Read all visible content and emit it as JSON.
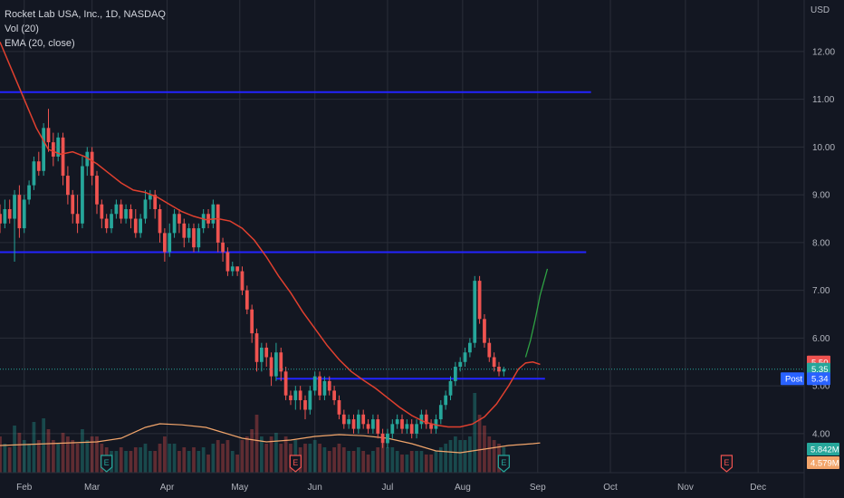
{
  "legend": {
    "symbol": "Rocket Lab USA, Inc., 1D, NASDAQ",
    "vol": "Vol (20)",
    "ema": "EMA (20, close)"
  },
  "colors": {
    "background": "#131722",
    "grid": "#2a2e39",
    "up": "#26a69a",
    "down": "#ef5350",
    "ema": "#e0402f",
    "hline": "#2323ff",
    "axis_text": "#b2b5be",
    "vol_ma": "#f2a56b",
    "forecast": "#2ea043"
  },
  "chart_data": {
    "type": "candlestick",
    "currency": "USD",
    "y_ticks": [
      "12.00",
      "11.00",
      "10.00",
      "9.00",
      "8.00",
      "7.00",
      "6.00",
      "5.00",
      "4.00"
    ],
    "y_values": [
      12,
      11,
      10,
      9,
      8,
      7,
      6,
      5,
      4
    ],
    "ylim": [
      3.6,
      12.7
    ],
    "x_ticks": [
      "Feb",
      "Mar",
      "Apr",
      "May",
      "Jun",
      "Jul",
      "Aug",
      "Sep",
      "Oct",
      "Nov",
      "Dec"
    ],
    "x_tick_days": [
      0,
      28,
      59,
      89,
      120,
      150,
      181,
      212,
      242,
      273,
      303
    ],
    "xlim_days": [
      -10,
      322
    ],
    "horizontal_lines": [
      {
        "price": 11.15,
        "from_day": -10,
        "to_day": 234
      },
      {
        "price": 7.8,
        "from_day": -10,
        "to_day": 232
      },
      {
        "price": 5.15,
        "from_day": 104,
        "to_day": 215
      }
    ],
    "price_labels": [
      {
        "label": "",
        "value": "5.50",
        "price": 5.5,
        "color": "#ef5350"
      },
      {
        "label": "",
        "value": "5.35",
        "price": 5.35,
        "color": "#26a69a"
      },
      {
        "label": "Post",
        "value": "5.34",
        "price": 5.15,
        "color": "#2962ff"
      }
    ],
    "volume_labels": [
      {
        "value": "5.842M",
        "color": "#26a69a"
      },
      {
        "value": "4.579M",
        "color": "#f2a56b"
      }
    ],
    "earnings": [
      {
        "day": 34,
        "label": "E",
        "color": "#26a69a"
      },
      {
        "day": 112,
        "label": "E",
        "color": "#ef5350"
      },
      {
        "day": 198,
        "label": "E",
        "color": "#26a69a"
      },
      {
        "day": 290,
        "label": "E",
        "color": "#ef5350"
      }
    ],
    "ema_points": [
      [
        -10,
        12.2
      ],
      [
        -5,
        11.6
      ],
      [
        0,
        11.0
      ],
      [
        5,
        10.4
      ],
      [
        10,
        9.95
      ],
      [
        15,
        9.85
      ],
      [
        20,
        9.9
      ],
      [
        25,
        9.8
      ],
      [
        30,
        9.65
      ],
      [
        35,
        9.45
      ],
      [
        40,
        9.25
      ],
      [
        45,
        9.1
      ],
      [
        50,
        9.05
      ],
      [
        55,
        8.95
      ],
      [
        60,
        8.8
      ],
      [
        65,
        8.65
      ],
      [
        70,
        8.55
      ],
      [
        75,
        8.48
      ],
      [
        80,
        8.5
      ],
      [
        85,
        8.45
      ],
      [
        90,
        8.3
      ],
      [
        95,
        8.05
      ],
      [
        100,
        7.7
      ],
      [
        105,
        7.3
      ],
      [
        110,
        6.95
      ],
      [
        115,
        6.55
      ],
      [
        120,
        6.2
      ],
      [
        125,
        5.85
      ],
      [
        130,
        5.55
      ],
      [
        135,
        5.3
      ],
      [
        140,
        5.12
      ],
      [
        145,
        4.95
      ],
      [
        150,
        4.75
      ],
      [
        155,
        4.55
      ],
      [
        160,
        4.38
      ],
      [
        165,
        4.25
      ],
      [
        170,
        4.18
      ],
      [
        175,
        4.14
      ],
      [
        180,
        4.14
      ],
      [
        185,
        4.2
      ],
      [
        190,
        4.35
      ],
      [
        195,
        4.62
      ],
      [
        200,
        5.0
      ],
      [
        204,
        5.35
      ],
      [
        207,
        5.48
      ],
      [
        210,
        5.5
      ],
      [
        213,
        5.45
      ]
    ],
    "forecast_points": [
      [
        207,
        5.6
      ],
      [
        209,
        5.95
      ],
      [
        211,
        6.4
      ],
      [
        213,
        6.9
      ],
      [
        216,
        7.45
      ]
    ],
    "candles": [
      [
        -10,
        8.6,
        8.4,
        8.8,
        8.2,
        1.0
      ],
      [
        -8,
        8.4,
        8.7,
        8.9,
        8.3,
        0.8
      ],
      [
        -6,
        8.7,
        8.5,
        8.9,
        8.4,
        0.7
      ],
      [
        -4,
        8.5,
        9.0,
        9.1,
        7.6,
        1.3
      ],
      [
        -2,
        9.0,
        8.3,
        9.2,
        8.1,
        1.1
      ],
      [
        0,
        8.3,
        8.9,
        9.0,
        8.2,
        0.9
      ],
      [
        2,
        8.9,
        9.2,
        9.3,
        8.8,
        0.8
      ],
      [
        4,
        9.2,
        9.7,
        9.8,
        9.1,
        1.4
      ],
      [
        6,
        9.7,
        9.5,
        9.9,
        9.4,
        0.9
      ],
      [
        8,
        9.5,
        10.4,
        10.5,
        9.4,
        1.5
      ],
      [
        10,
        10.4,
        10.1,
        10.8,
        9.9,
        1.2
      ],
      [
        12,
        10.1,
        9.8,
        10.3,
        9.6,
        0.9
      ],
      [
        14,
        9.8,
        10.2,
        10.3,
        9.7,
        0.8
      ],
      [
        16,
        10.2,
        9.4,
        10.3,
        9.2,
        1.1
      ],
      [
        18,
        9.4,
        9.0,
        9.6,
        8.8,
        1.0
      ],
      [
        20,
        9.0,
        8.6,
        9.1,
        8.4,
        0.9
      ],
      [
        22,
        8.6,
        8.4,
        9.0,
        8.2,
        0.8
      ],
      [
        24,
        8.4,
        9.6,
        9.8,
        8.3,
        1.2
      ],
      [
        26,
        9.6,
        9.9,
        10.0,
        9.4,
        0.9
      ],
      [
        28,
        9.9,
        9.4,
        10.0,
        9.2,
        1.0
      ],
      [
        30,
        9.4,
        8.8,
        9.5,
        8.6,
        1.0
      ],
      [
        32,
        8.8,
        8.5,
        8.9,
        8.3,
        0.8
      ],
      [
        34,
        8.5,
        8.3,
        8.6,
        8.2,
        0.7
      ],
      [
        36,
        8.3,
        8.6,
        8.7,
        8.2,
        0.6
      ],
      [
        38,
        8.6,
        8.8,
        8.9,
        8.5,
        0.6
      ],
      [
        40,
        8.8,
        8.5,
        8.9,
        8.4,
        0.7
      ],
      [
        42,
        8.5,
        8.7,
        8.8,
        8.4,
        0.6
      ],
      [
        44,
        8.7,
        8.5,
        8.8,
        8.3,
        0.6
      ],
      [
        46,
        8.5,
        8.2,
        8.7,
        8.1,
        0.7
      ],
      [
        48,
        8.2,
        8.5,
        8.6,
        8.1,
        0.7
      ],
      [
        50,
        8.5,
        8.9,
        9.1,
        8.4,
        0.8
      ],
      [
        52,
        8.9,
        9.0,
        9.1,
        8.7,
        0.6
      ],
      [
        54,
        9.0,
        8.7,
        9.1,
        8.5,
        0.6
      ],
      [
        56,
        8.7,
        8.2,
        8.8,
        8.0,
        0.8
      ],
      [
        58,
        8.2,
        7.8,
        8.3,
        7.6,
        1.0
      ],
      [
        60,
        7.8,
        8.2,
        8.4,
        7.7,
        0.8
      ],
      [
        62,
        8.2,
        8.6,
        8.7,
        8.1,
        0.8
      ],
      [
        64,
        8.6,
        8.4,
        8.7,
        8.2,
        0.6
      ],
      [
        66,
        8.4,
        8.1,
        8.5,
        7.9,
        0.7
      ],
      [
        68,
        8.1,
        8.3,
        8.4,
        8.0,
        0.6
      ],
      [
        70,
        8.3,
        7.9,
        8.4,
        7.8,
        0.7
      ],
      [
        72,
        7.9,
        8.3,
        8.4,
        7.8,
        0.6
      ],
      [
        74,
        8.3,
        8.6,
        8.7,
        8.2,
        0.7
      ],
      [
        76,
        8.6,
        8.4,
        8.7,
        8.3,
        0.5
      ],
      [
        78,
        8.4,
        8.8,
        8.9,
        8.3,
        0.8
      ],
      [
        80,
        8.8,
        8.0,
        8.8,
        7.8,
        0.9
      ],
      [
        82,
        8.0,
        7.8,
        8.1,
        7.6,
        0.8
      ],
      [
        84,
        7.8,
        7.4,
        7.9,
        7.3,
        0.9
      ],
      [
        86,
        7.4,
        7.5,
        7.6,
        7.3,
        0.6
      ],
      [
        88,
        7.5,
        7.4,
        7.5,
        7.3,
        0.5
      ],
      [
        90,
        7.4,
        7.0,
        7.5,
        6.9,
        0.9
      ],
      [
        92,
        7.0,
        6.6,
        7.1,
        6.5,
        1.0
      ],
      [
        94,
        6.6,
        6.1,
        6.7,
        5.9,
        1.2
      ],
      [
        96,
        6.1,
        5.5,
        6.2,
        5.3,
        1.6
      ],
      [
        98,
        5.5,
        5.8,
        5.9,
        5.3,
        1.0
      ],
      [
        100,
        5.8,
        5.6,
        5.9,
        5.4,
        0.8
      ],
      [
        102,
        5.6,
        5.2,
        5.7,
        5.0,
        1.0
      ],
      [
        104,
        5.2,
        5.7,
        5.9,
        5.1,
        1.1
      ],
      [
        106,
        5.7,
        5.3,
        5.8,
        5.1,
        0.8
      ],
      [
        108,
        5.3,
        4.8,
        5.4,
        4.7,
        1.0
      ],
      [
        110,
        4.8,
        4.7,
        4.9,
        4.6,
        0.8
      ],
      [
        112,
        4.7,
        4.9,
        5.0,
        4.5,
        0.9
      ],
      [
        114,
        4.9,
        4.7,
        5.0,
        4.5,
        0.7
      ],
      [
        116,
        4.7,
        4.5,
        4.8,
        4.3,
        0.8
      ],
      [
        118,
        4.5,
        4.9,
        5.0,
        4.4,
        0.8
      ],
      [
        120,
        4.9,
        5.2,
        5.3,
        4.8,
        0.9
      ],
      [
        122,
        5.2,
        4.8,
        5.3,
        4.7,
        0.8
      ],
      [
        124,
        4.8,
        5.1,
        5.2,
        4.7,
        0.7
      ],
      [
        126,
        5.1,
        4.9,
        5.2,
        4.8,
        0.6
      ],
      [
        128,
        4.9,
        4.7,
        5.0,
        4.6,
        0.7
      ],
      [
        130,
        4.7,
        4.4,
        4.8,
        4.3,
        0.8
      ],
      [
        132,
        4.4,
        4.2,
        4.5,
        4.1,
        0.7
      ],
      [
        134,
        4.2,
        4.3,
        4.4,
        4.1,
        0.6
      ],
      [
        136,
        4.3,
        4.1,
        4.4,
        4.0,
        0.6
      ],
      [
        138,
        4.1,
        4.4,
        4.5,
        4.0,
        0.7
      ],
      [
        140,
        4.4,
        4.2,
        4.5,
        4.1,
        0.6
      ],
      [
        142,
        4.2,
        4.1,
        4.3,
        4.0,
        0.5
      ],
      [
        144,
        4.1,
        4.3,
        4.4,
        4.0,
        0.6
      ],
      [
        146,
        4.3,
        4.0,
        4.4,
        3.9,
        0.7
      ],
      [
        148,
        4.0,
        3.8,
        4.1,
        3.7,
        0.8
      ],
      [
        150,
        3.8,
        4.0,
        4.1,
        3.7,
        0.7
      ],
      [
        152,
        4.0,
        4.2,
        4.3,
        3.9,
        0.7
      ],
      [
        154,
        4.2,
        4.3,
        4.4,
        4.1,
        0.6
      ],
      [
        156,
        4.3,
        4.1,
        4.4,
        4.0,
        0.5
      ],
      [
        158,
        4.1,
        4.2,
        4.3,
        4.0,
        0.5
      ],
      [
        160,
        4.2,
        4.0,
        4.3,
        3.9,
        0.6
      ],
      [
        162,
        4.0,
        4.2,
        4.3,
        3.9,
        0.6
      ],
      [
        164,
        4.2,
        4.4,
        4.5,
        4.1,
        0.6
      ],
      [
        166,
        4.4,
        4.2,
        4.5,
        4.1,
        0.5
      ],
      [
        168,
        4.2,
        4.1,
        4.3,
        4.0,
        0.5
      ],
      [
        170,
        4.1,
        4.3,
        4.4,
        4.0,
        0.6
      ],
      [
        172,
        4.3,
        4.6,
        4.7,
        4.2,
        0.7
      ],
      [
        174,
        4.6,
        4.8,
        4.9,
        4.5,
        0.8
      ],
      [
        176,
        4.8,
        5.1,
        5.2,
        4.7,
        0.9
      ],
      [
        178,
        5.1,
        5.4,
        5.5,
        5.0,
        1.0
      ],
      [
        180,
        5.4,
        5.5,
        5.6,
        5.3,
        0.9
      ],
      [
        182,
        5.5,
        5.7,
        5.8,
        5.4,
        0.9
      ],
      [
        184,
        5.7,
        5.9,
        6.0,
        5.6,
        1.0
      ],
      [
        186,
        5.9,
        7.2,
        7.3,
        5.8,
        2.2
      ],
      [
        188,
        7.2,
        6.4,
        7.3,
        6.3,
        1.6
      ],
      [
        190,
        6.4,
        5.9,
        6.5,
        5.8,
        1.3
      ],
      [
        192,
        5.9,
        5.6,
        6.0,
        5.5,
        1.0
      ],
      [
        194,
        5.6,
        5.4,
        5.7,
        5.3,
        0.9
      ],
      [
        196,
        5.4,
        5.3,
        5.5,
        5.2,
        0.8
      ],
      [
        198,
        5.3,
        5.35,
        5.4,
        5.2,
        0.7
      ]
    ],
    "volume_ma_points": [
      [
        -10,
        0.75
      ],
      [
        10,
        0.8
      ],
      [
        30,
        0.85
      ],
      [
        40,
        0.95
      ],
      [
        50,
        1.25
      ],
      [
        56,
        1.35
      ],
      [
        65,
        1.32
      ],
      [
        75,
        1.25
      ],
      [
        80,
        1.15
      ],
      [
        90,
        0.95
      ],
      [
        100,
        0.85
      ],
      [
        110,
        0.9
      ],
      [
        120,
        1.0
      ],
      [
        130,
        1.05
      ],
      [
        140,
        1.02
      ],
      [
        150,
        0.95
      ],
      [
        160,
        0.8
      ],
      [
        170,
        0.6
      ],
      [
        180,
        0.55
      ],
      [
        190,
        0.65
      ],
      [
        200,
        0.75
      ],
      [
        210,
        0.8
      ],
      [
        213,
        0.82
      ]
    ]
  }
}
